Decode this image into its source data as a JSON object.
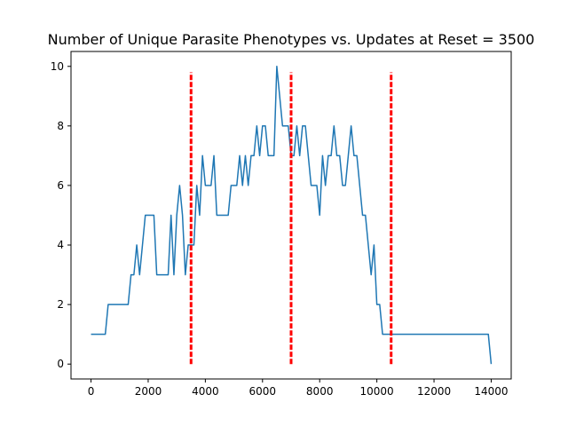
{
  "chart_data": {
    "type": "line",
    "title": "Number of Unique Parasite Phenotypes vs. Updates at Reset = 3500",
    "xlabel": "",
    "ylabel": "",
    "xlim": [
      -700,
      14700
    ],
    "ylim": [
      -0.5,
      10.5
    ],
    "xticks": [
      0,
      2000,
      4000,
      6000,
      8000,
      10000,
      12000,
      14000
    ],
    "yticks": [
      0,
      2,
      4,
      6,
      8,
      10
    ],
    "grid": false,
    "line_color": "#1f77b4",
    "reset_line_color": "#ff0000",
    "reset_lines": [
      {
        "x": 3500,
        "y_range": [
          0,
          9.8
        ]
      },
      {
        "x": 7000,
        "y_range": [
          0,
          9.8
        ]
      },
      {
        "x": 10500,
        "y_range": [
          0,
          9.8
        ]
      }
    ],
    "series": [
      {
        "x": [
          0,
          500,
          600,
          1300,
          1400,
          1500,
          1600,
          1700,
          1800,
          1900,
          2000,
          2100,
          2200,
          2300,
          2400,
          2500,
          2700,
          2800,
          2900,
          3000,
          3100,
          3200,
          3300,
          3400,
          3500,
          3600,
          3700,
          3800,
          3900,
          4000,
          4100,
          4200,
          4300,
          4400,
          4500,
          4600,
          4700,
          4800,
          4900,
          5000,
          5100,
          5200,
          5300,
          5400,
          5500,
          5600,
          5700,
          5800,
          5900,
          6000,
          6100,
          6200,
          6300,
          6400,
          6500,
          6600,
          6700,
          6800,
          6900,
          7000,
          7100,
          7200,
          7300,
          7400,
          7500,
          7600,
          7700,
          7800,
          7900,
          8000,
          8100,
          8200,
          8300,
          8400,
          8500,
          8600,
          8700,
          8800,
          8900,
          9000,
          9100,
          9200,
          9300,
          9400,
          9500,
          9600,
          9700,
          9800,
          9900,
          10000,
          10100,
          10200,
          10300,
          10400,
          10500,
          11000,
          12000,
          13000,
          13900,
          14000
        ],
        "y": [
          1,
          1,
          2,
          2,
          3,
          3,
          4,
          3,
          4,
          5,
          5,
          5,
          5,
          3,
          3,
          3,
          3,
          5,
          3,
          5,
          6,
          5,
          3,
          4,
          4,
          4,
          6,
          5,
          7,
          6,
          6,
          6,
          7,
          5,
          5,
          5,
          5,
          5,
          6,
          6,
          6,
          7,
          6,
          7,
          6,
          7,
          7,
          8,
          7,
          8,
          8,
          7,
          7,
          7,
          10,
          9,
          8,
          8,
          8,
          7,
          7,
          8,
          7,
          8,
          8,
          7,
          6,
          6,
          6,
          5,
          7,
          6,
          7,
          7,
          8,
          7,
          7,
          6,
          6,
          7,
          8,
          7,
          7,
          6,
          5,
          5,
          4,
          3,
          4,
          2,
          2,
          1,
          1,
          1,
          1,
          1,
          1,
          1,
          1,
          0
        ]
      }
    ]
  }
}
